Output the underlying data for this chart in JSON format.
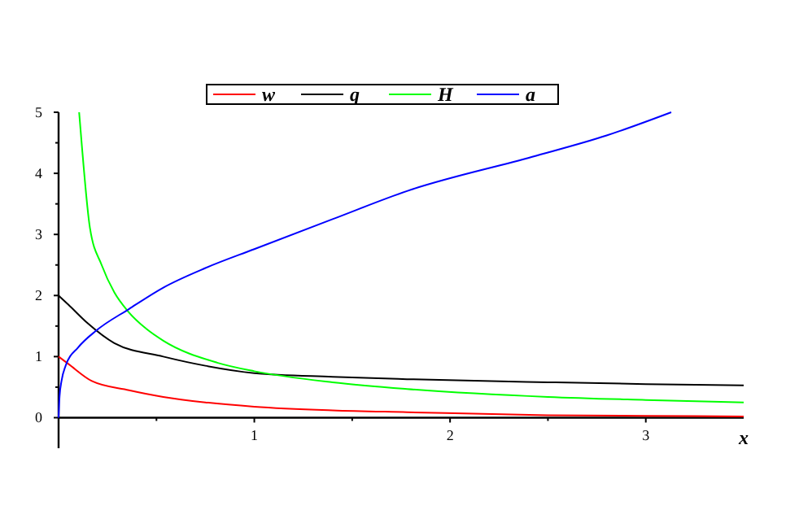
{
  "chart_data": {
    "type": "line",
    "xlabel": "x",
    "xlim": [
      0,
      3.5
    ],
    "ylim": [
      -0.5,
      5
    ],
    "xticks": [
      {
        "value": 0.5,
        "label": null
      },
      1,
      {
        "value": 1.5,
        "label": null
      },
      2,
      {
        "value": 2.5,
        "label": null
      },
      3
    ],
    "yticks": [
      0,
      {
        "value": 0.5,
        "label": null
      },
      1,
      {
        "value": 1.5,
        "label": null
      },
      2,
      {
        "value": 2.5,
        "label": null
      },
      3,
      {
        "value": 3.5,
        "label": null
      },
      4,
      {
        "value": 4.5,
        "label": null
      },
      5
    ],
    "legend": "top",
    "grid": false,
    "marker": "none",
    "line_style": "solid",
    "series": [
      {
        "name": "w",
        "color": "#ff0000",
        "x": [
          0,
          0.05,
          0.17,
          0.36,
          0.535,
          0.75,
          1,
          1.4,
          1.78,
          2.5,
          3,
          3.5
        ],
        "values": [
          1,
          0.88,
          0.6,
          0.45,
          0.34,
          0.25,
          0.18,
          0.12,
          0.09,
          0.04,
          0.03,
          0.02
        ]
      },
      {
        "name": "q",
        "color": "#000000",
        "x": [
          0,
          0.05,
          0.147,
          0.285,
          0.535,
          0.75,
          1,
          1.4,
          1.78,
          2.5,
          3,
          3.5
        ],
        "values": [
          2,
          1.85,
          1.55,
          1.22,
          1,
          0.85,
          0.73,
          0.67,
          0.63,
          0.58,
          0.55,
          0.53
        ]
      },
      {
        "name": "H",
        "color": "#00ff00",
        "x": [
          0.105,
          0.119,
          0.16,
          0.22,
          0.285,
          0.355,
          0.45,
          0.535,
          0.81,
          1,
          1.4,
          1.78,
          2.5,
          3,
          3.5
        ],
        "values": [
          5,
          4.45,
          3.11,
          2.5,
          2.05,
          1.74,
          1.45,
          1.26,
          0.9,
          0.76,
          0.58,
          0.47,
          0.34,
          0.29,
          0.25
        ]
      },
      {
        "name": "a",
        "color": "#0000ff",
        "x": [
          0,
          0.005,
          0.015,
          0.036,
          0.1,
          0.19,
          0.36,
          0.535,
          0.75,
          1,
          1.4,
          1.78,
          2.42,
          2.8,
          3.13
        ],
        "values": [
          0,
          0.35,
          0.6,
          0.85,
          1.15,
          1.42,
          1.78,
          2.13,
          2.45,
          2.76,
          3.25,
          3.71,
          4.27,
          4.62,
          5
        ]
      }
    ]
  }
}
